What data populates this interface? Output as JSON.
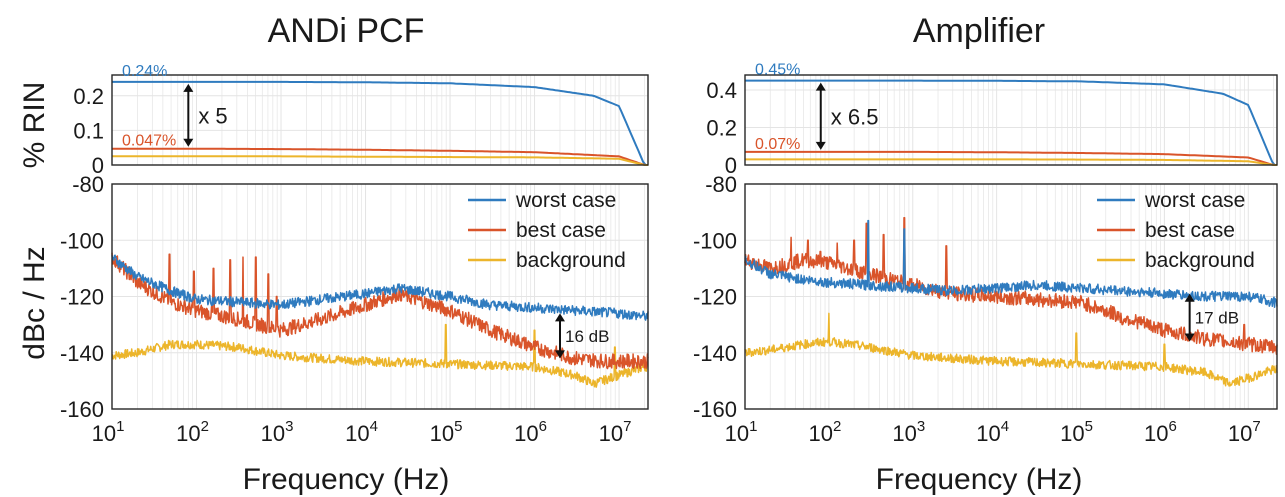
{
  "chart_data": [
    {
      "type": "line",
      "title": "ANDi PCF",
      "rin_panel": {
        "ylabel": "% RIN",
        "ylim": [
          0,
          0.26
        ],
        "yticks": [
          "0",
          "0.1",
          "0.2"
        ],
        "annotations": {
          "top_value": "0.24%",
          "low_value": "0.047%",
          "ratio": "x 5"
        },
        "series": [
          {
            "name": "worst case",
            "x": [
              10,
              100,
              1000,
              10000,
              100000,
              1000000,
              5000000,
              10000000,
              20000000
            ],
            "y": [
              0.24,
              0.24,
              0.24,
              0.239,
              0.236,
              0.225,
              0.2,
              0.17,
              0.0
            ]
          },
          {
            "name": "best case",
            "x": [
              10,
              100,
              1000,
              10000,
              100000,
              1000000,
              10000000,
              20000000
            ],
            "y": [
              0.047,
              0.047,
              0.046,
              0.044,
              0.041,
              0.037,
              0.025,
              0.0
            ]
          },
          {
            "name": "background",
            "x": [
              10,
              100,
              1000,
              10000,
              100000,
              1000000,
              10000000,
              20000000
            ],
            "y": [
              0.025,
              0.025,
              0.025,
              0.024,
              0.023,
              0.022,
              0.018,
              0.0
            ]
          }
        ]
      },
      "psd_panel": {
        "ylabel": "dBc / Hz",
        "xlabel": "Frequency (Hz)",
        "ylim": [
          -160,
          -80
        ],
        "yticks": [
          "-80",
          "-100",
          "-120",
          "-140",
          "-160"
        ],
        "xticks": [
          {
            "base": "10",
            "exp": "1"
          },
          {
            "base": "10",
            "exp": "2"
          },
          {
            "base": "10",
            "exp": "3"
          },
          {
            "base": "10",
            "exp": "4"
          },
          {
            "base": "10",
            "exp": "5"
          },
          {
            "base": "10",
            "exp": "6"
          },
          {
            "base": "10",
            "exp": "7"
          }
        ],
        "gap_annotation": "16 dB",
        "legend": [
          "worst case",
          "best case",
          "background"
        ],
        "legend_position": "top-right",
        "series": [
          {
            "name": "worst case",
            "x": [
              10,
              20,
              50,
              100,
              300,
              1000,
              3000,
              10000,
              25000,
              100000,
              300000,
              1000000,
              3000000,
              10000000,
              20000000
            ],
            "y": [
              -106,
              -113,
              -118,
              -121,
              -122,
              -123,
              -121,
              -119,
              -117,
              -120,
              -123,
              -124,
              -125,
              -126,
              -127
            ]
          },
          {
            "name": "best case",
            "x": [
              10,
              20,
              50,
              100,
              300,
              1000,
              3000,
              10000,
              25000,
              100000,
              300000,
              1000000,
              3000000,
              7000000,
              20000000
            ],
            "y": [
              -106,
              -115,
              -122,
              -125,
              -128,
              -132,
              -128,
              -123,
              -119,
              -125,
              -132,
              -138,
              -142,
              -143,
              -143
            ]
          },
          {
            "name": "background",
            "x": [
              10,
              20,
              50,
              100,
              300,
              1000,
              3000,
              10000,
              100000,
              1000000,
              3000000,
              5000000,
              10000000,
              20000000
            ],
            "y": [
              -141,
              -140,
              -137,
              -137,
              -138,
              -141,
              -142,
              -143,
              -144,
              -145,
              -148,
              -151,
              -148,
              -145
            ]
          }
        ]
      }
    },
    {
      "type": "line",
      "title": "Amplifier",
      "rin_panel": {
        "ylabel": "",
        "ylim": [
          0,
          0.48
        ],
        "yticks": [
          "0",
          "0.2",
          "0.4"
        ],
        "annotations": {
          "top_value": "0.45%",
          "low_value": "0.07%",
          "ratio": "x 6.5"
        },
        "series": [
          {
            "name": "worst case",
            "x": [
              10,
              100,
              1000,
              10000,
              100000,
              1000000,
              5000000,
              10000000,
              20000000
            ],
            "y": [
              0.45,
              0.45,
              0.45,
              0.449,
              0.446,
              0.43,
              0.38,
              0.32,
              0.0
            ]
          },
          {
            "name": "best case",
            "x": [
              10,
              100,
              1000,
              10000,
              100000,
              1000000,
              10000000,
              20000000
            ],
            "y": [
              0.07,
              0.07,
              0.07,
              0.068,
              0.064,
              0.058,
              0.04,
              0.0
            ]
          },
          {
            "name": "background",
            "x": [
              10,
              100,
              1000,
              10000,
              100000,
              1000000,
              10000000,
              20000000
            ],
            "y": [
              0.03,
              0.03,
              0.03,
              0.03,
              0.029,
              0.027,
              0.02,
              0.0
            ]
          }
        ]
      },
      "psd_panel": {
        "ylabel": "",
        "xlabel": "Frequency (Hz)",
        "ylim": [
          -160,
          -80
        ],
        "yticks": [
          "-80",
          "-100",
          "-120",
          "-140",
          "-160"
        ],
        "xticks": [
          {
            "base": "10",
            "exp": "1"
          },
          {
            "base": "10",
            "exp": "2"
          },
          {
            "base": "10",
            "exp": "3"
          },
          {
            "base": "10",
            "exp": "4"
          },
          {
            "base": "10",
            "exp": "5"
          },
          {
            "base": "10",
            "exp": "6"
          },
          {
            "base": "10",
            "exp": "7"
          }
        ],
        "gap_annotation": "17 dB",
        "legend": [
          "worst case",
          "best case",
          "background"
        ],
        "legend_position": "top-right",
        "series": [
          {
            "name": "worst case",
            "x": [
              10,
              20,
              50,
              100,
              300,
              1000,
              3000,
              10000,
              30000,
              100000,
              300000,
              1000000,
              3000000,
              10000000,
              20000000
            ],
            "y": [
              -107,
              -112,
              -114,
              -115,
              -116,
              -117,
              -118,
              -117,
              -116,
              -117,
              -118,
              -119,
              -120,
              -120,
              -122
            ]
          },
          {
            "name": "best case",
            "x": [
              10,
              20,
              50,
              100,
              300,
              1000,
              3000,
              10000,
              30000,
              100000,
              300000,
              1000000,
              3000000,
              10000000,
              20000000
            ],
            "y": [
              -107,
              -110,
              -107,
              -108,
              -112,
              -116,
              -119,
              -120,
              -121,
              -122,
              -127,
              -132,
              -135,
              -137,
              -138
            ]
          },
          {
            "name": "background",
            "x": [
              10,
              20,
              50,
              100,
              300,
              1000,
              3000,
              10000,
              100000,
              1000000,
              3000000,
              6000000,
              10000000,
              20000000
            ],
            "y": [
              -140,
              -139,
              -137,
              -136,
              -138,
              -141,
              -142,
              -143,
              -144,
              -145,
              -147,
              -151,
              -149,
              -146
            ]
          }
        ]
      }
    }
  ],
  "colors": {
    "worst case": "#2f7bbf",
    "best case": "#d9542a",
    "background": "#ecb52b",
    "axis": "#262626",
    "grid": "#e4e4e4"
  }
}
